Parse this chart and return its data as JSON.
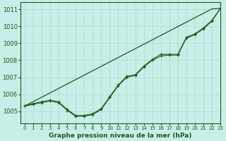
{
  "background_color": "#c8eee8",
  "grid_color": "#b0d8d0",
  "line_color": "#1a5c1a",
  "title": "Graphe pression niveau de la mer (hPa)",
  "xlim": [
    -0.5,
    23
  ],
  "ylim": [
    1004.3,
    1011.4
  ],
  "xticks": [
    0,
    1,
    2,
    3,
    4,
    5,
    6,
    7,
    8,
    9,
    10,
    11,
    12,
    13,
    14,
    15,
    16,
    17,
    18,
    19,
    20,
    21,
    22,
    23
  ],
  "yticks": [
    1005,
    1006,
    1007,
    1008,
    1009,
    1010,
    1011
  ],
  "hours": [
    0,
    1,
    2,
    3,
    4,
    5,
    6,
    7,
    8,
    9,
    10,
    11,
    12,
    13,
    14,
    15,
    16,
    17,
    18,
    19,
    20,
    21,
    22,
    23
  ],
  "line_straight": [
    1005.3,
    1005.56,
    1005.82,
    1006.08,
    1006.34,
    1006.6,
    1006.86,
    1007.12,
    1007.38,
    1007.64,
    1007.9,
    1008.16,
    1008.42,
    1008.68,
    1008.94,
    1009.2,
    1009.46,
    1009.72,
    1009.98,
    1010.24,
    1010.5,
    1010.76,
    1011.02,
    1011.05
  ],
  "line_curve1": [
    1005.3,
    1005.45,
    1005.55,
    1005.65,
    1005.55,
    1005.1,
    1004.75,
    1004.75,
    1004.85,
    1005.15,
    1005.85,
    1006.55,
    1007.05,
    1007.15,
    1007.65,
    1008.05,
    1008.35,
    1008.35,
    1008.35,
    1009.35,
    1009.55,
    1009.9,
    1010.35,
    1011.05
  ],
  "line_curve2": [
    1005.3,
    1005.4,
    1005.5,
    1005.6,
    1005.5,
    1005.05,
    1004.7,
    1004.7,
    1004.8,
    1005.1,
    1005.8,
    1006.5,
    1007.0,
    1007.1,
    1007.6,
    1008.0,
    1008.25,
    1008.3,
    1008.3,
    1009.3,
    1009.5,
    1009.85,
    1010.3,
    1011.05
  ]
}
